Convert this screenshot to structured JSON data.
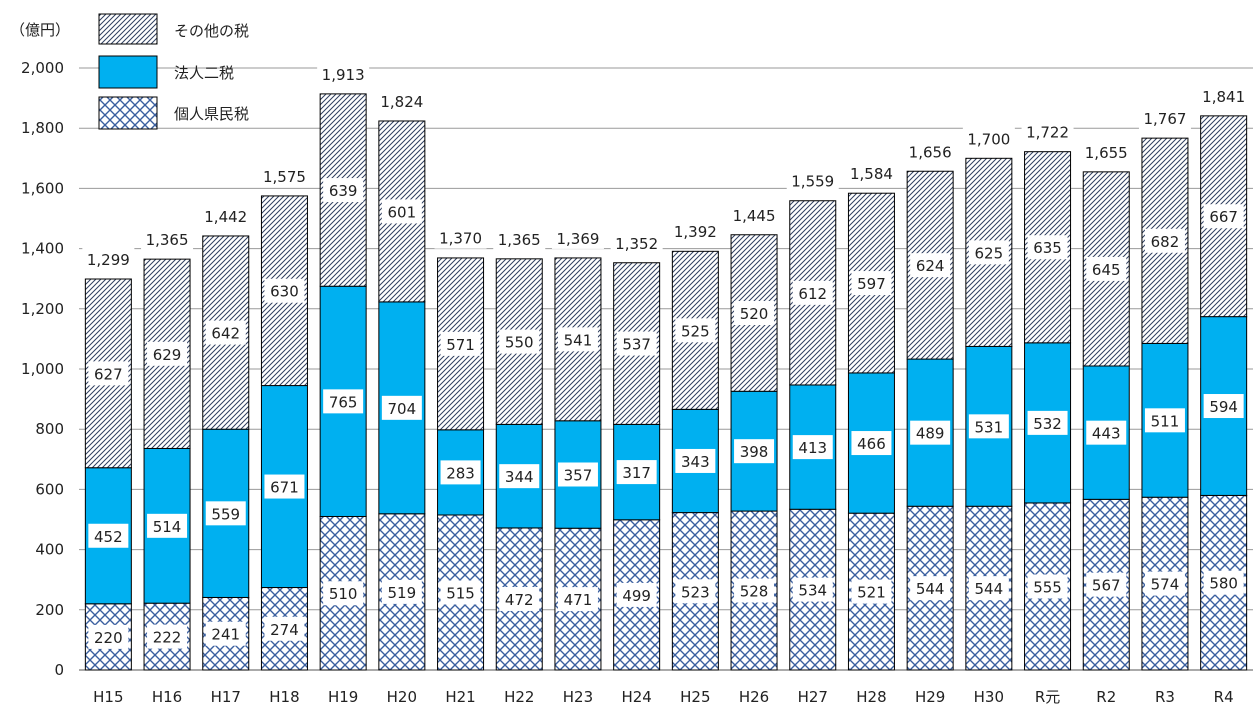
{
  "chart_data": {
    "type": "bar",
    "stacked": true,
    "unit": "（億円）",
    "ylim": [
      0,
      2000
    ],
    "yticks": [
      0,
      200,
      400,
      600,
      800,
      1000,
      1200,
      1400,
      1600,
      1800,
      2000
    ],
    "ytick_labels": [
      "0",
      "200",
      "400",
      "600",
      "800",
      "1,000",
      "1,200",
      "1,400",
      "1,600",
      "1,800",
      "2,000"
    ],
    "grid": true,
    "legend_position": "top-left",
    "categories": [
      "H15",
      "H16",
      "H17",
      "H18",
      "H19",
      "H20",
      "H21",
      "H22",
      "H23",
      "H24",
      "H25",
      "H26",
      "H27",
      "H28",
      "H29",
      "H30",
      "R元",
      "R2",
      "R3",
      "R4"
    ],
    "series": [
      {
        "name": "個人県民税",
        "color": "#3a5f9f",
        "pattern": "crosshatch",
        "values": [
          220,
          222,
          241,
          274,
          510,
          519,
          515,
          472,
          471,
          499,
          523,
          528,
          534,
          521,
          544,
          544,
          555,
          567,
          574,
          580
        ]
      },
      {
        "name": "法人二税",
        "color": "#00b0f0",
        "pattern": "solid",
        "values": [
          452,
          514,
          559,
          671,
          765,
          704,
          283,
          344,
          357,
          317,
          343,
          398,
          413,
          466,
          489,
          531,
          532,
          443,
          511,
          594
        ]
      },
      {
        "name": "その他の税",
        "color": "#3a4a6a",
        "pattern": "diagonal",
        "values": [
          627,
          629,
          642,
          630,
          639,
          601,
          571,
          550,
          541,
          537,
          525,
          520,
          612,
          597,
          624,
          625,
          635,
          645,
          682,
          667
        ]
      }
    ],
    "totals": [
      1299,
      1365,
      1442,
      1575,
      1913,
      1824,
      1370,
      1365,
      1369,
      1352,
      1392,
      1445,
      1559,
      1584,
      1656,
      1700,
      1722,
      1655,
      1767,
      1841
    ]
  }
}
